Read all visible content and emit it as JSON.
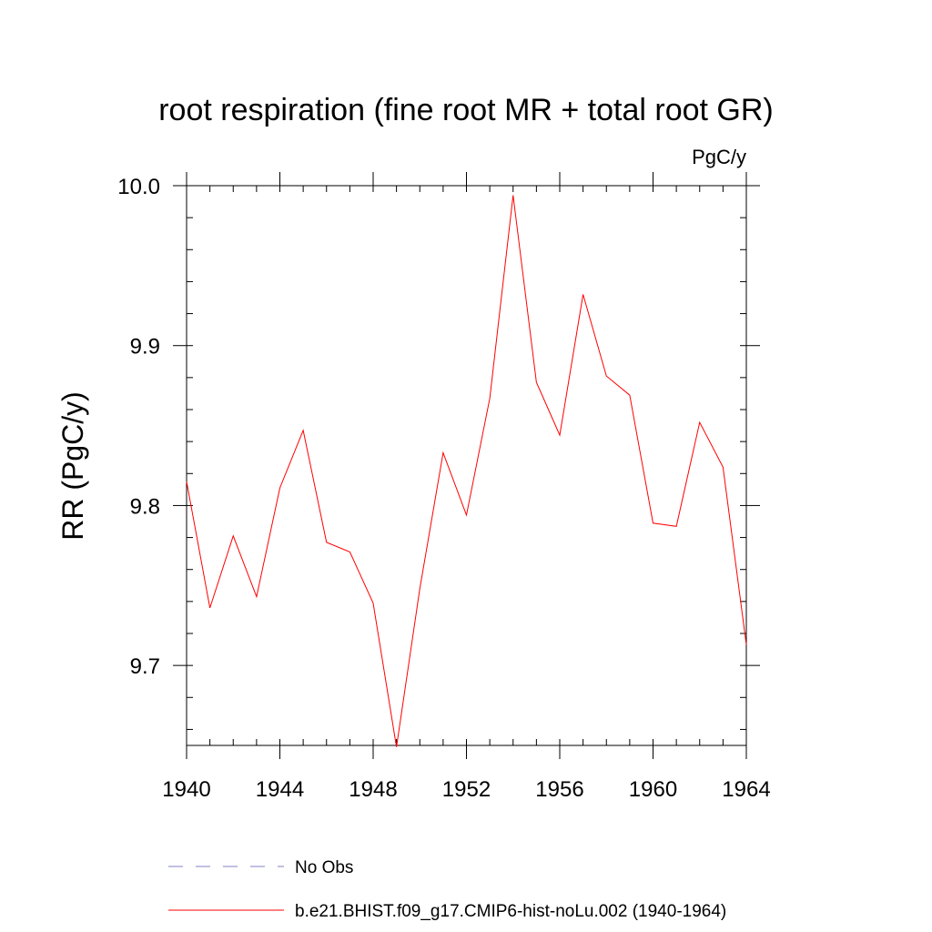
{
  "chart_data": {
    "type": "line",
    "title": "root respiration (fine root MR + total root GR)",
    "unit_label": "PgC/y",
    "xlabel": "",
    "ylabel": "RR  (PgC/y)",
    "xlim": [
      1940,
      1964
    ],
    "ylim": [
      9.65,
      10.0
    ],
    "x_ticks": [
      1940,
      1944,
      1948,
      1952,
      1956,
      1960,
      1964
    ],
    "x_tick_labels": [
      "1940",
      "1944",
      "1948",
      "1952",
      "1956",
      "1960",
      "1964"
    ],
    "y_ticks": [
      9.7,
      9.8,
      9.9,
      10.0
    ],
    "y_tick_labels": [
      "9.7",
      "9.8",
      "9.9",
      "10.0"
    ],
    "x_minor_step": 1,
    "y_minor_step": 0.02,
    "grid": false,
    "legend_position": "bottom",
    "x": [
      1940,
      1941,
      1942,
      1943,
      1944,
      1945,
      1946,
      1947,
      1948,
      1949,
      1950,
      1951,
      1952,
      1953,
      1954,
      1955,
      1956,
      1957,
      1958,
      1959,
      1960,
      1961,
      1962,
      1963,
      1964
    ],
    "series": [
      {
        "name": "b.e21.BHIST.f09_g17.CMIP6-hist-noLu.002 (1940-1964)",
        "color": "#ff0000",
        "style": "solid",
        "values": [
          9.815,
          9.736,
          9.781,
          9.743,
          9.811,
          9.847,
          9.777,
          9.771,
          9.739,
          9.649,
          9.748,
          9.833,
          9.794,
          9.867,
          9.994,
          9.877,
          9.844,
          9.932,
          9.881,
          9.869,
          9.789,
          9.787,
          9.852,
          9.824,
          9.713
        ]
      }
    ],
    "legend": [
      {
        "label": "No Obs",
        "color": "#8080c0",
        "style": "dashed"
      },
      {
        "label": "b.e21.BHIST.f09_g17.CMIP6-hist-noLu.002 (1940-1964)",
        "color": "#ff0000",
        "style": "solid"
      }
    ]
  }
}
